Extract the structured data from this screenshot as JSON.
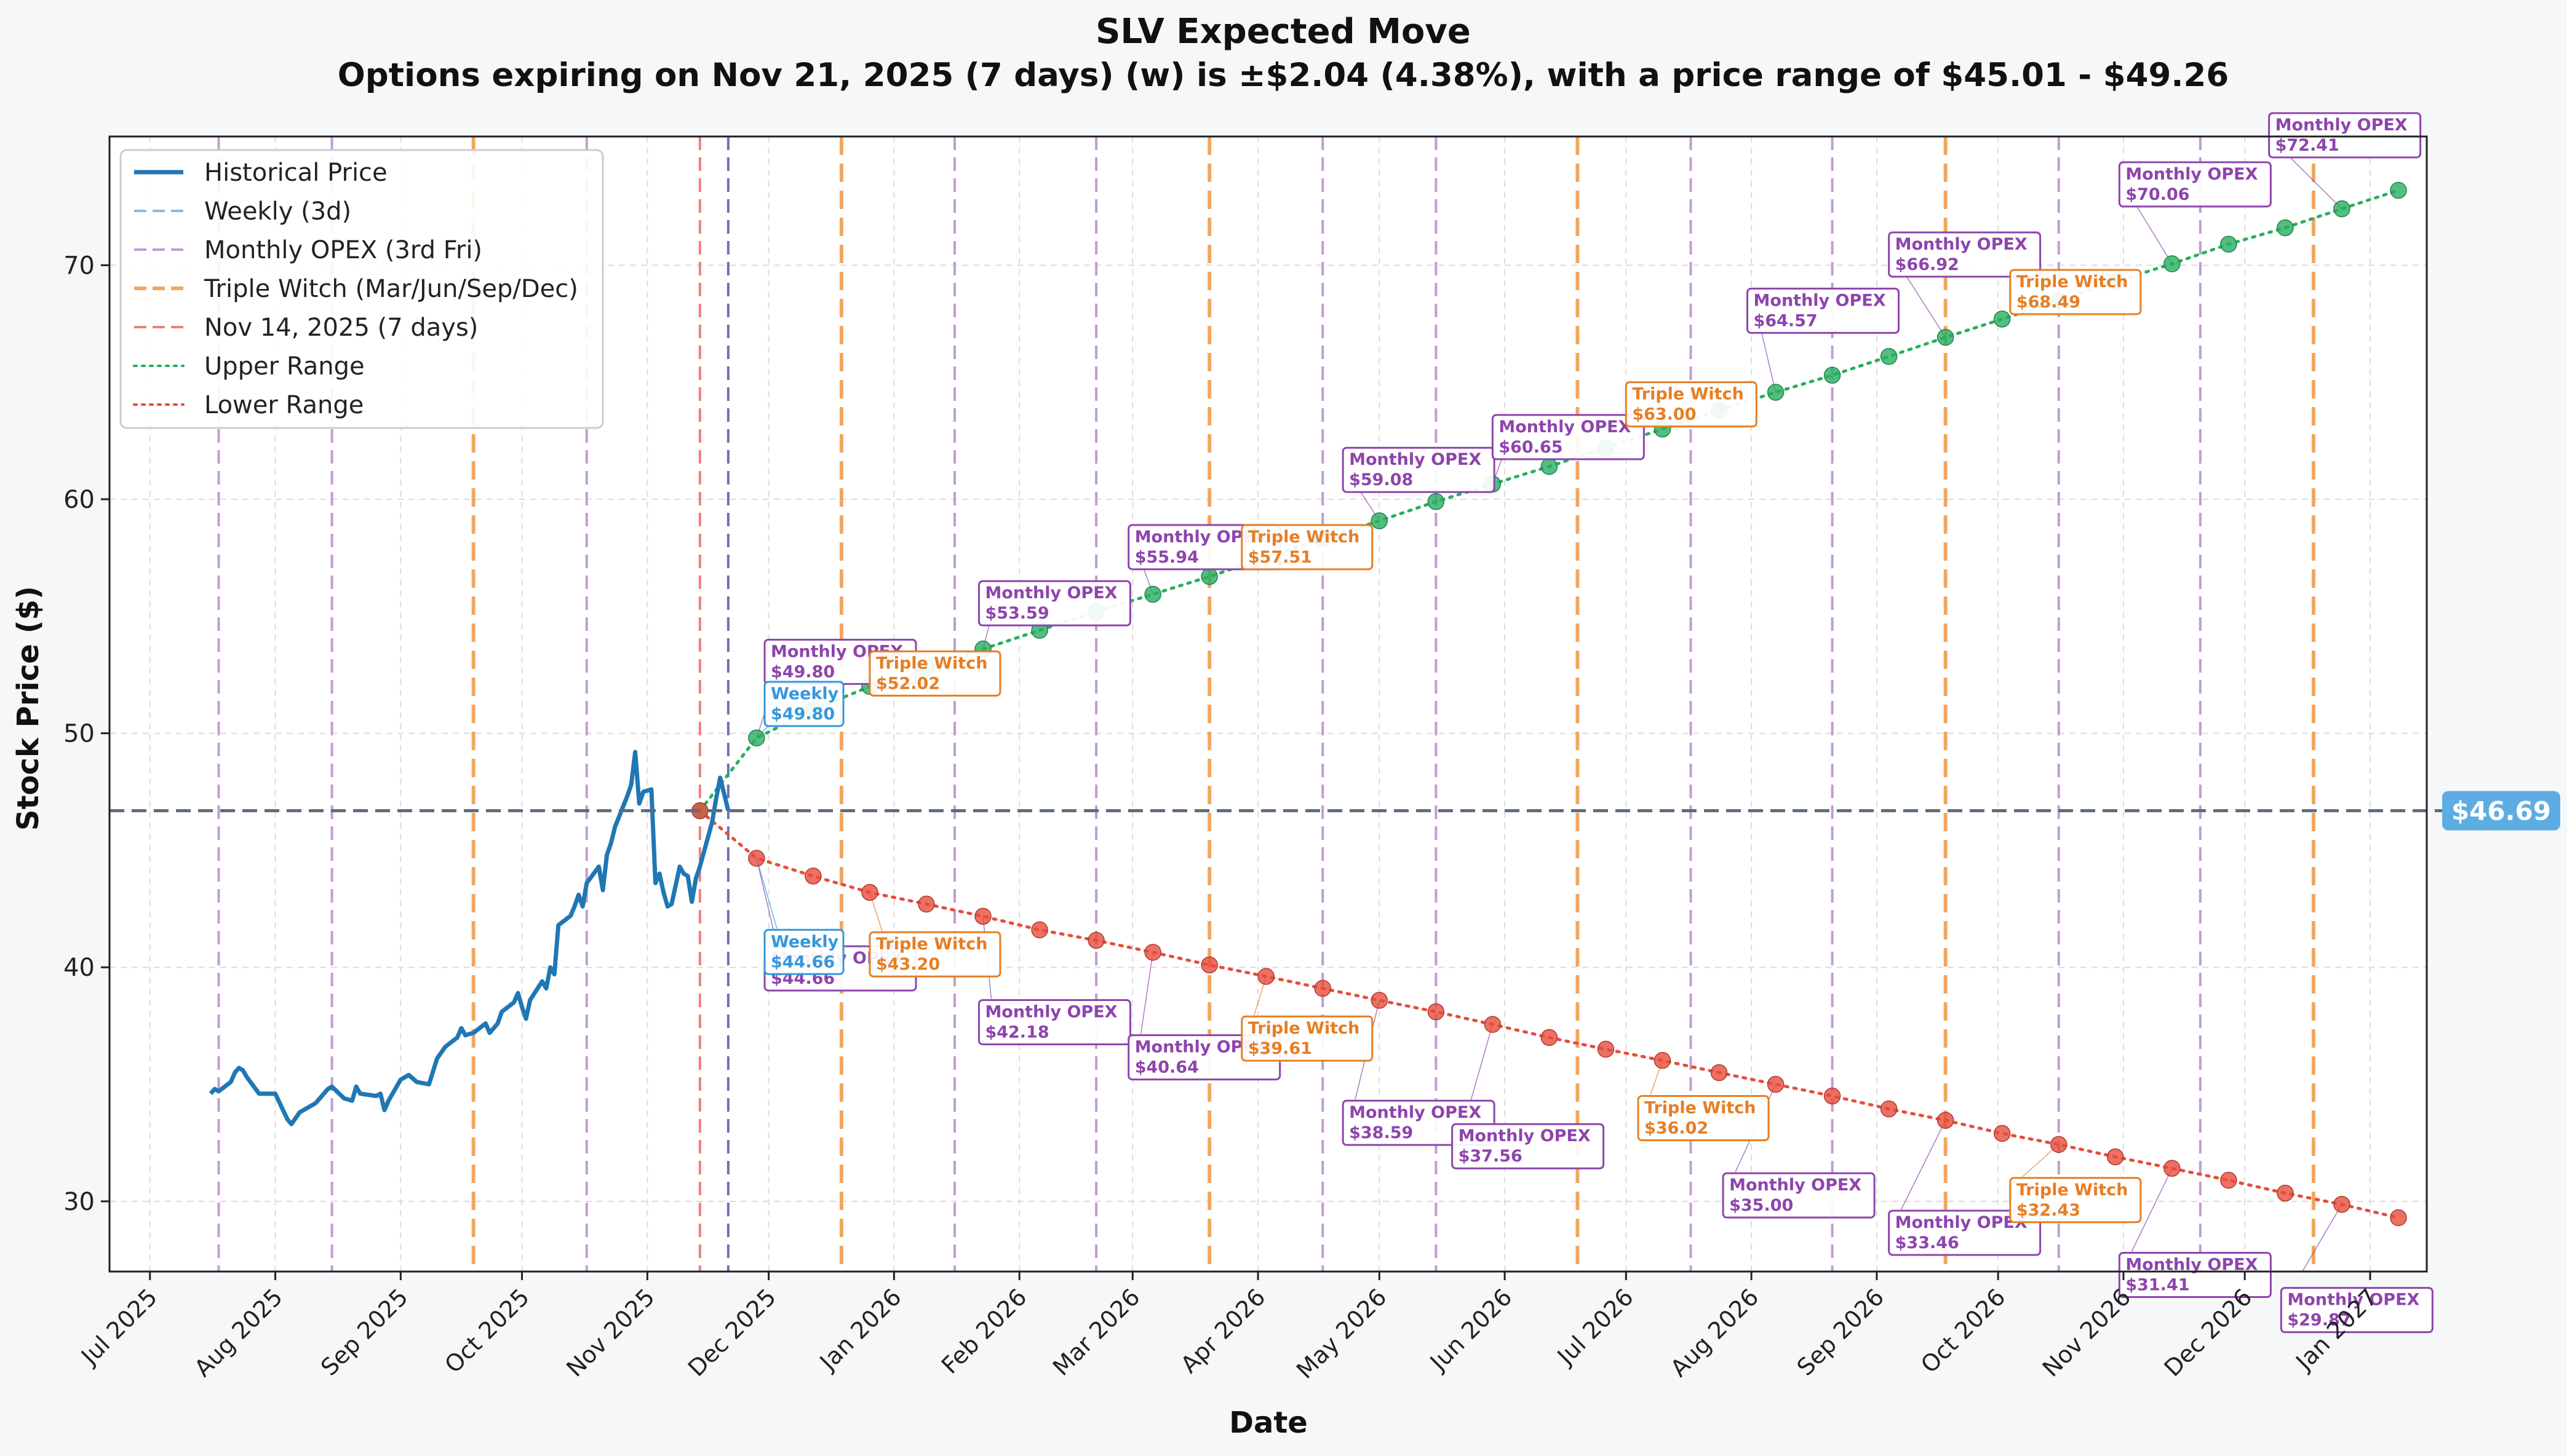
{
  "chart_data": {
    "type": "line",
    "title": "SLV Expected Move",
    "subtitle": "Options expiring on Nov 21, 2025 (7 days) (w) is ±$2.04 (4.38%), with a price range of $45.01 - $49.26",
    "xlabel": "Date",
    "ylabel": "Stock Price ($)",
    "xlim": [
      "2025-06-21",
      "2027-01-15"
    ],
    "ylim": [
      27,
      75.5
    ],
    "x_ticks": [
      "Jul 2025",
      "Aug 2025",
      "Sep 2025",
      "Oct 2025",
      "Nov 2025",
      "Dec 2025",
      "Jan 2026",
      "Feb 2026",
      "Mar 2026",
      "Apr 2026",
      "May 2026",
      "Jun 2026",
      "Jul 2026",
      "Aug 2026",
      "Sep 2026",
      "Oct 2026",
      "Nov 2026",
      "Dec 2026",
      "Jan 2027"
    ],
    "x_tick_dates": [
      "2025-07-01",
      "2025-08-01",
      "2025-09-01",
      "2025-10-01",
      "2025-11-01",
      "2025-12-01",
      "2026-01-01",
      "2026-02-01",
      "2026-03-01",
      "2026-04-01",
      "2026-05-01",
      "2026-06-01",
      "2026-07-01",
      "2026-08-01",
      "2026-09-01",
      "2026-10-01",
      "2026-11-01",
      "2026-12-01",
      "2027-01-01"
    ],
    "y_ticks": [
      30,
      40,
      50,
      60,
      70
    ],
    "grid": true,
    "legend_position": "top-left",
    "legend": [
      {
        "label": "Historical Price",
        "style": "solid",
        "color": "#1f77b4"
      },
      {
        "label": "Weekly (3d)",
        "style": "dashed",
        "color": "#8fb8de"
      },
      {
        "label": "Monthly OPEX (3rd Fri)",
        "style": "dashed",
        "color": "#c39bd3"
      },
      {
        "label": "Triple Witch (Mar/Jun/Sep/Dec)",
        "style": "dashed",
        "color": "#f0a860"
      },
      {
        "label": "Nov 14, 2025 (7 days)",
        "style": "dashed",
        "color": "#ee8080"
      },
      {
        "label": "Upper Range",
        "style": "dotted",
        "color": "#27ae60"
      },
      {
        "label": "Lower Range",
        "style": "dotted",
        "color": "#e74c3c"
      }
    ],
    "current_price": 46.69,
    "current_price_label": "$46.69",
    "reference_date": "2025-11-14",
    "weekly_line_date": "2025-11-21",
    "monthly_opex_dates": [
      "2025-07-18",
      "2025-08-15",
      "2025-10-17",
      "2026-01-16",
      "2026-02-20",
      "2026-04-17",
      "2026-05-15",
      "2026-07-17",
      "2026-08-21",
      "2026-10-16",
      "2026-11-20"
    ],
    "triple_witch_dates": [
      "2025-09-19",
      "2025-12-19",
      "2026-03-20",
      "2026-06-19",
      "2026-09-18",
      "2026-12-18"
    ],
    "historical": {
      "name": "Historical Price",
      "points": [
        [
          "2025-07-16",
          34.6
        ],
        [
          "2025-07-17",
          34.8
        ],
        [
          "2025-07-18",
          34.7
        ],
        [
          "2025-07-21",
          35.1
        ],
        [
          "2025-07-22",
          35.5
        ],
        [
          "2025-07-23",
          35.7
        ],
        [
          "2025-07-24",
          35.6
        ],
        [
          "2025-07-25",
          35.3
        ],
        [
          "2025-07-28",
          34.6
        ],
        [
          "2025-07-30",
          34.6
        ],
        [
          "2025-08-01",
          34.6
        ],
        [
          "2025-08-04",
          33.5
        ],
        [
          "2025-08-05",
          33.3
        ],
        [
          "2025-08-07",
          33.8
        ],
        [
          "2025-08-11",
          34.2
        ],
        [
          "2025-08-12",
          34.4
        ],
        [
          "2025-08-14",
          34.8
        ],
        [
          "2025-08-15",
          34.9
        ],
        [
          "2025-08-18",
          34.4
        ],
        [
          "2025-08-20",
          34.3
        ],
        [
          "2025-08-21",
          34.9
        ],
        [
          "2025-08-22",
          34.6
        ],
        [
          "2025-08-26",
          34.5
        ],
        [
          "2025-08-27",
          34.6
        ],
        [
          "2025-08-28",
          33.9
        ],
        [
          "2025-08-29",
          34.3
        ],
        [
          "2025-09-01",
          35.2
        ],
        [
          "2025-09-03",
          35.4
        ],
        [
          "2025-09-05",
          35.1
        ],
        [
          "2025-09-08",
          35.0
        ],
        [
          "2025-09-10",
          36.1
        ],
        [
          "2025-09-12",
          36.6
        ],
        [
          "2025-09-15",
          37.0
        ],
        [
          "2025-09-16",
          37.4
        ],
        [
          "2025-09-17",
          37.1
        ],
        [
          "2025-09-19",
          37.2
        ],
        [
          "2025-09-22",
          37.6
        ],
        [
          "2025-09-23",
          37.2
        ],
        [
          "2025-09-25",
          37.6
        ],
        [
          "2025-09-26",
          38.1
        ],
        [
          "2025-09-29",
          38.5
        ],
        [
          "2025-09-30",
          38.9
        ],
        [
          "2025-10-01",
          38.3
        ],
        [
          "2025-10-02",
          37.8
        ],
        [
          "2025-10-03",
          38.6
        ],
        [
          "2025-10-06",
          39.4
        ],
        [
          "2025-10-07",
          39.1
        ],
        [
          "2025-10-08",
          40.0
        ],
        [
          "2025-10-09",
          39.7
        ],
        [
          "2025-10-10",
          41.8
        ],
        [
          "2025-10-13",
          42.2
        ],
        [
          "2025-10-14",
          42.6
        ],
        [
          "2025-10-15",
          43.1
        ],
        [
          "2025-10-16",
          42.6
        ],
        [
          "2025-10-17",
          43.6
        ],
        [
          "2025-10-20",
          44.3
        ],
        [
          "2025-10-21",
          43.3
        ],
        [
          "2025-10-22",
          44.8
        ],
        [
          "2025-10-23",
          45.3
        ],
        [
          "2025-10-24",
          46.0
        ],
        [
          "2025-10-27",
          47.3
        ],
        [
          "2025-10-28",
          47.8
        ],
        [
          "2025-10-29",
          49.2
        ],
        [
          "2025-10-30",
          47.0
        ],
        [
          "2025-10-31",
          47.5
        ],
        [
          "2025-11-02",
          47.6
        ],
        [
          "2025-11-03",
          43.6
        ],
        [
          "2025-11-04",
          44.0
        ],
        [
          "2025-11-05",
          43.2
        ],
        [
          "2025-11-06",
          42.6
        ],
        [
          "2025-11-07",
          42.7
        ],
        [
          "2025-11-09",
          44.3
        ],
        [
          "2025-11-10",
          44.0
        ],
        [
          "2025-11-11",
          43.9
        ],
        [
          "2025-11-12",
          42.8
        ],
        [
          "2025-11-13",
          43.8
        ],
        [
          "2025-11-14",
          44.3
        ],
        [
          "2025-11-17",
          46.2
        ],
        [
          "2025-11-18",
          47.2
        ],
        [
          "2025-11-19",
          48.1
        ],
        [
          "2025-11-20",
          47.4
        ],
        [
          "2025-11-21",
          46.7
        ]
      ]
    },
    "upper_range": {
      "name": "Upper Range",
      "points": [
        [
          "2025-11-14",
          46.69
        ],
        [
          "2025-11-28",
          49.8
        ],
        [
          "2025-12-12",
          51.0
        ],
        [
          "2025-12-26",
          52.0
        ],
        [
          "2026-01-09",
          52.8
        ],
        [
          "2026-01-23",
          53.6
        ],
        [
          "2026-02-06",
          54.4
        ],
        [
          "2026-02-20",
          55.2
        ],
        [
          "2026-03-06",
          55.94
        ],
        [
          "2026-03-20",
          56.7
        ],
        [
          "2026-04-03",
          57.51
        ],
        [
          "2026-04-17",
          58.3
        ],
        [
          "2026-05-01",
          59.08
        ],
        [
          "2026-05-15",
          59.9
        ],
        [
          "2026-05-29",
          60.65
        ],
        [
          "2026-06-12",
          61.4
        ],
        [
          "2026-06-26",
          62.2
        ],
        [
          "2026-07-10",
          63.0
        ],
        [
          "2026-07-24",
          63.8
        ],
        [
          "2026-08-07",
          64.57
        ],
        [
          "2026-08-21",
          65.3
        ],
        [
          "2026-09-04",
          66.1
        ],
        [
          "2026-09-18",
          66.92
        ],
        [
          "2026-10-02",
          67.7
        ],
        [
          "2026-10-16",
          68.49
        ],
        [
          "2026-10-30",
          69.3
        ],
        [
          "2026-11-13",
          70.06
        ],
        [
          "2026-11-27",
          70.9
        ],
        [
          "2026-12-11",
          71.6
        ],
        [
          "2026-12-25",
          72.41
        ],
        [
          "2027-01-08",
          73.2
        ]
      ]
    },
    "lower_range": {
      "name": "Lower Range",
      "points": [
        [
          "2025-11-14",
          46.69
        ],
        [
          "2025-11-28",
          44.66
        ],
        [
          "2025-12-12",
          43.9
        ],
        [
          "2025-12-26",
          43.2
        ],
        [
          "2026-01-09",
          42.7
        ],
        [
          "2026-01-23",
          42.18
        ],
        [
          "2026-02-06",
          41.6
        ],
        [
          "2026-02-20",
          41.15
        ],
        [
          "2026-03-06",
          40.64
        ],
        [
          "2026-03-20",
          40.1
        ],
        [
          "2026-04-03",
          39.61
        ],
        [
          "2026-04-17",
          39.1
        ],
        [
          "2026-05-01",
          38.59
        ],
        [
          "2026-05-15",
          38.1
        ],
        [
          "2026-05-29",
          37.56
        ],
        [
          "2026-06-12",
          37.0
        ],
        [
          "2026-06-26",
          36.5
        ],
        [
          "2026-07-10",
          36.02
        ],
        [
          "2026-07-24",
          35.5
        ],
        [
          "2026-08-07",
          35.0
        ],
        [
          "2026-08-21",
          34.5
        ],
        [
          "2026-09-04",
          33.95
        ],
        [
          "2026-09-18",
          33.46
        ],
        [
          "2026-10-02",
          32.9
        ],
        [
          "2026-10-16",
          32.43
        ],
        [
          "2026-10-30",
          31.9
        ],
        [
          "2026-11-13",
          31.41
        ],
        [
          "2026-11-27",
          30.9
        ],
        [
          "2026-12-11",
          30.35
        ],
        [
          "2026-12-25",
          29.87
        ],
        [
          "2027-01-08",
          29.3
        ]
      ]
    },
    "annotations": [
      {
        "kind": "monthly",
        "text": "Monthly OPEX",
        "value": "$49.80",
        "date": "2025-11-28",
        "price": 49.8,
        "side": "upper",
        "lx": "2025-11-30",
        "ly": 54.0
      },
      {
        "kind": "weekly",
        "text": "Weekly",
        "value": "$49.80",
        "date": "2025-11-28",
        "price": 49.8,
        "side": "upper",
        "lx": "2025-11-30",
        "ly": 52.2
      },
      {
        "kind": "triple",
        "text": "Triple Witch",
        "value": "$52.02",
        "date": "2025-12-26",
        "price": 52.0,
        "side": "upper",
        "lx": "2025-12-26",
        "ly": 53.5
      },
      {
        "kind": "monthly",
        "text": "Monthly OPEX",
        "value": "$53.59",
        "date": "2026-01-23",
        "price": 53.6,
        "side": "upper",
        "lx": "2026-01-22",
        "ly": 56.5
      },
      {
        "kind": "monthly",
        "text": "Monthly OPEX",
        "value": "$55.94",
        "date": "2026-03-06",
        "price": 55.94,
        "side": "upper",
        "lx": "2026-02-28",
        "ly": 58.9
      },
      {
        "kind": "triple",
        "text": "Triple Witch",
        "value": "$57.51",
        "date": "2026-04-03",
        "price": 57.51,
        "side": "upper",
        "lx": "2026-03-28",
        "ly": 58.9
      },
      {
        "kind": "monthly",
        "text": "Monthly OPEX",
        "value": "$59.08",
        "date": "2026-05-01",
        "price": 59.08,
        "side": "upper",
        "lx": "2026-04-22",
        "ly": 62.2
      },
      {
        "kind": "monthly",
        "text": "Monthly OPEX",
        "value": "$60.65",
        "date": "2026-05-29",
        "price": 60.65,
        "side": "upper",
        "lx": "2026-05-29",
        "ly": 63.6
      },
      {
        "kind": "triple",
        "text": "Triple Witch",
        "value": "$63.00",
        "date": "2026-07-10",
        "price": 63.0,
        "side": "upper",
        "lx": "2026-07-01",
        "ly": 65.0
      },
      {
        "kind": "monthly",
        "text": "Monthly OPEX",
        "value": "$64.57",
        "date": "2026-08-07",
        "price": 64.57,
        "side": "upper",
        "lx": "2026-07-31",
        "ly": 69.0
      },
      {
        "kind": "monthly",
        "text": "Monthly OPEX",
        "value": "$66.92",
        "date": "2026-09-18",
        "price": 66.92,
        "side": "upper",
        "lx": "2026-09-04",
        "ly": 71.4
      },
      {
        "kind": "triple",
        "text": "Triple Witch",
        "value": "$68.49",
        "date": "2026-10-16",
        "price": 68.49,
        "side": "upper",
        "lx": "2026-10-04",
        "ly": 69.8
      },
      {
        "kind": "monthly",
        "text": "Monthly OPEX",
        "value": "$70.06",
        "date": "2026-11-13",
        "price": 70.06,
        "side": "upper",
        "lx": "2026-10-31",
        "ly": 74.4
      },
      {
        "kind": "monthly",
        "text": "Monthly OPEX",
        "value": "$72.41",
        "date": "2026-12-25",
        "price": 72.41,
        "side": "upper",
        "lx": "2026-12-07",
        "ly": 76.5
      },
      {
        "kind": "monthly",
        "text": "Monthly OPEX",
        "value": "$44.66",
        "date": "2025-11-28",
        "price": 44.66,
        "side": "lower",
        "lx": "2025-11-30",
        "ly": 40.9
      },
      {
        "kind": "weekly",
        "text": "Weekly",
        "value": "$44.66",
        "date": "2025-11-28",
        "price": 44.66,
        "side": "lower",
        "lx": "2025-11-30",
        "ly": 41.6
      },
      {
        "kind": "triple",
        "text": "Triple Witch",
        "value": "$43.20",
        "date": "2025-12-26",
        "price": 43.2,
        "side": "lower",
        "lx": "2025-12-26",
        "ly": 41.5
      },
      {
        "kind": "monthly",
        "text": "Monthly OPEX",
        "value": "$42.18",
        "date": "2026-01-23",
        "price": 42.18,
        "side": "lower",
        "lx": "2026-01-22",
        "ly": 38.6
      },
      {
        "kind": "monthly",
        "text": "Monthly OPEX",
        "value": "$40.64",
        "date": "2026-03-06",
        "price": 40.64,
        "side": "lower",
        "lx": "2026-02-28",
        "ly": 37.1
      },
      {
        "kind": "triple",
        "text": "Triple Witch",
        "value": "$39.61",
        "date": "2026-04-03",
        "price": 39.61,
        "side": "lower",
        "lx": "2026-03-28",
        "ly": 37.9
      },
      {
        "kind": "monthly",
        "text": "Monthly OPEX",
        "value": "$38.59",
        "date": "2026-05-01",
        "price": 38.59,
        "side": "lower",
        "lx": "2026-04-22",
        "ly": 34.3
      },
      {
        "kind": "monthly",
        "text": "Monthly OPEX",
        "value": "$37.56",
        "date": "2026-05-29",
        "price": 37.56,
        "side": "lower",
        "lx": "2026-05-19",
        "ly": 33.3
      },
      {
        "kind": "triple",
        "text": "Triple Witch",
        "value": "$36.02",
        "date": "2026-07-10",
        "price": 36.02,
        "side": "lower",
        "lx": "2026-07-04",
        "ly": 34.5
      },
      {
        "kind": "monthly",
        "text": "Monthly OPEX",
        "value": "$35.00",
        "date": "2026-08-07",
        "price": 35.0,
        "side": "lower",
        "lx": "2026-07-25",
        "ly": 31.2
      },
      {
        "kind": "monthly",
        "text": "Monthly OPEX",
        "value": "$33.46",
        "date": "2026-09-18",
        "price": 33.46,
        "side": "lower",
        "lx": "2026-09-04",
        "ly": 29.6
      },
      {
        "kind": "triple",
        "text": "Triple Witch",
        "value": "$32.43",
        "date": "2026-10-16",
        "price": 32.43,
        "side": "lower",
        "lx": "2026-10-04",
        "ly": 31.0
      },
      {
        "kind": "monthly",
        "text": "Monthly OPEX",
        "value": "$31.41",
        "date": "2026-11-13",
        "price": 31.41,
        "side": "lower",
        "lx": "2026-10-31",
        "ly": 27.8
      },
      {
        "kind": "monthly",
        "text": "Monthly OPEX",
        "value": "$29.87",
        "date": "2026-12-25",
        "price": 29.87,
        "side": "lower",
        "lx": "2026-12-10",
        "ly": 26.3
      }
    ],
    "colors": {
      "historical": "#1f77b4",
      "upper": "#27ae60",
      "lower": "#e74c3c",
      "monthly": "#8e44ad",
      "monthly_line": "#c39bd3",
      "triple": "#e67e22",
      "triple_line": "#f0a860",
      "weekly": "#3498db",
      "weekly_line": "#6c70b8",
      "reference": "#ee8080",
      "current": "#5d6d7e",
      "current_badge": "#5dade2"
    }
  }
}
